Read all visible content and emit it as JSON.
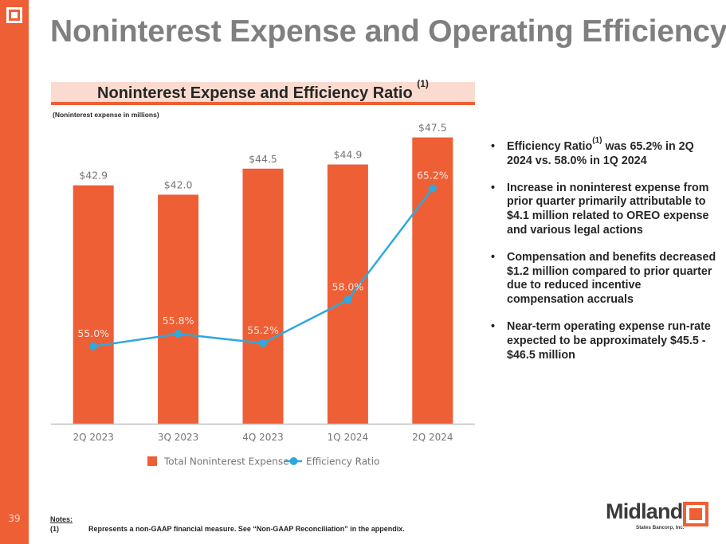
{
  "slide": {
    "title": "Noninterest Expense and Operating Efficiency",
    "page_number": "39",
    "brand_color": "#EE5F36"
  },
  "chart_header": {
    "title": "Noninterest Expense and Efficiency Ratio",
    "footnote_ref": "(1)",
    "subtitle": "(Noninterest expense in millions)"
  },
  "chart_data": {
    "type": "bar",
    "title": "Noninterest Expense and Efficiency Ratio (1)",
    "subtitle": "(Noninterest expense in millions)",
    "xlabel": "",
    "ylabel": "",
    "categories": [
      "2Q 2023",
      "3Q 2023",
      "4Q 2023",
      "1Q 2024",
      "2Q 2024"
    ],
    "series": [
      {
        "name": "Total Noninterest Expense",
        "type": "bar",
        "color": "#EE5F36",
        "values": [
          42.9,
          42.0,
          44.5,
          44.9,
          47.5
        ],
        "labels": [
          "$42.9",
          "$42.0",
          "$44.5",
          "$44.9",
          "$47.5"
        ],
        "axis": "primary"
      },
      {
        "name": "Efficiency Ratio",
        "type": "line",
        "color": "#2FA8DE",
        "values": [
          55.0,
          55.8,
          55.2,
          58.0,
          65.2
        ],
        "labels": [
          "55.0%",
          "55.8%",
          "55.2%",
          "58.0%",
          "65.2%"
        ],
        "axis": "secondary"
      }
    ],
    "primary_ylim": [
      20,
      48
    ],
    "secondary_ylim": [
      50,
      68
    ],
    "axes_visible": false,
    "grid": false,
    "legend": {
      "position": "bottom",
      "entries": [
        "Total Noninterest Expense",
        "Efficiency Ratio"
      ]
    }
  },
  "bullets": [
    {
      "prefix": "Efficiency Ratio",
      "sup": "(1)",
      "text": " was 65.2% in 2Q 2024 vs. 58.0% in 1Q 2024"
    },
    {
      "prefix": "",
      "sup": "",
      "text": "Increase in noninterest expense from prior quarter primarily attributable to $4.1 million related to OREO expense and various legal actions"
    },
    {
      "prefix": "",
      "sup": "",
      "text": "Compensation and benefits decreased $1.2 million compared to prior quarter due to reduced incentive compensation accruals"
    },
    {
      "prefix": "",
      "sup": "",
      "text": "Near-term operating expense run-rate expected to be approximately $45.5 - $46.5 million"
    }
  ],
  "notes": {
    "title": "Notes:",
    "items": [
      {
        "num": "(1)",
        "text": "Represents a non-GAAP financial measure. See “Non-GAAP Reconciliation” in the appendix."
      }
    ]
  },
  "logo": {
    "name": "Midland",
    "subtitle": "States Bancorp, Inc."
  }
}
